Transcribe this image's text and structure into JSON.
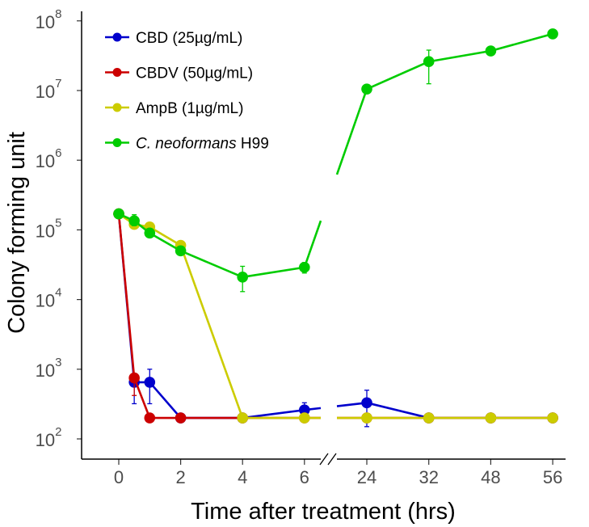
{
  "chart_data": {
    "type": "line",
    "title": "",
    "xlabel": "Time after treatment (hrs)",
    "ylabel": "Colony forming unit",
    "yscale": "log",
    "ylim": [
      100,
      100000000
    ],
    "ytick_exponents": [
      "2",
      "3",
      "4",
      "5",
      "6",
      "7",
      "8"
    ],
    "ytick_base": "10",
    "x": [
      0,
      0.5,
      1,
      2,
      4,
      6,
      24,
      32,
      48,
      56
    ],
    "xtick_labels": [
      "0",
      "2",
      "4",
      "6",
      "24",
      "32",
      "48",
      "56"
    ],
    "xtick_values": [
      0,
      2,
      4,
      6,
      24,
      32,
      48,
      56
    ],
    "axis_break": "between 6 and 24",
    "grid": false,
    "legend_position": "top-left",
    "series": [
      {
        "name": "CBD (25µg/mL)",
        "color": "#0000cc",
        "values": [
          170000,
          650,
          650,
          200,
          200,
          260,
          330,
          200,
          200,
          200
        ],
        "err_low": [
          null,
          320,
          320,
          null,
          null,
          200,
          150,
          null,
          null,
          null
        ],
        "err_high": [
          null,
          750,
          1000,
          null,
          null,
          330,
          500,
          null,
          null,
          null
        ]
      },
      {
        "name": "CBDV (50µg/mL)",
        "color": "#cc0000",
        "values": [
          170000,
          750,
          200,
          200,
          200,
          200,
          200,
          200,
          200,
          200
        ],
        "err_low": [
          null,
          420,
          null,
          null,
          null,
          null,
          null,
          null,
          null,
          null
        ],
        "err_high": [
          null,
          820,
          null,
          null,
          null,
          null,
          null,
          null,
          null,
          null
        ]
      },
      {
        "name": "AmpB (1µg/mL)",
        "color": "#cccc00",
        "values": [
          170000,
          120000,
          110000,
          60000,
          200,
          200,
          200,
          200,
          200,
          200
        ],
        "err_low": [
          null,
          null,
          null,
          null,
          null,
          null,
          null,
          null,
          null,
          null
        ],
        "err_high": [
          null,
          null,
          null,
          null,
          null,
          null,
          null,
          null,
          null,
          null
        ]
      },
      {
        "name_italic": "C. neoformans",
        "name_rest": " H99",
        "name": "C. neoformans H99",
        "color": "#00cc00",
        "values": [
          170000,
          135000,
          90000,
          50000,
          21000,
          29000,
          10500000,
          26000000,
          37000000,
          65000000
        ],
        "err_low": [
          null,
          115000,
          null,
          null,
          13000,
          24000,
          null,
          12500000,
          null,
          null
        ],
        "err_high": [
          null,
          165000,
          null,
          null,
          30000,
          34000,
          null,
          38000000,
          null,
          null
        ]
      }
    ]
  }
}
